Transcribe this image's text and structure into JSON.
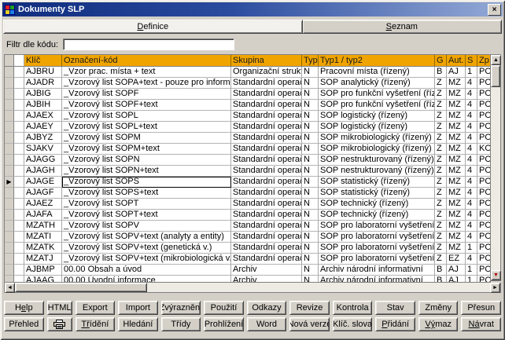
{
  "window": {
    "title": "Dokumenty SLP"
  },
  "icons": {
    "close": "×",
    "scroll_up": "▲",
    "scroll_down": "▼",
    "scroll_left": "◄",
    "scroll_right": "►",
    "row_pointer": "▶"
  },
  "colors": {
    "header_bg": "#F0A400",
    "titlebar_left": "#0F2C7E",
    "titlebar_right": "#93A9D6",
    "window_bg": "#D4D0C8",
    "scroll_down_arrow": "#B00000"
  },
  "tabs": [
    {
      "label": "Definice",
      "accel": "D",
      "active": true
    },
    {
      "label": "Seznam",
      "accel": "S",
      "active": false
    }
  ],
  "filter": {
    "label": "Filtr dle kódu:",
    "value": ""
  },
  "table": {
    "columns": [
      "Klíč",
      "Označení-kód",
      "Skupina",
      "Typ",
      "Typ1 / typ2",
      "G",
      "Aut.",
      "S",
      "Zp"
    ],
    "rows": [
      {
        "key": "AJBRU",
        "name": "_Vzor prac. místa + text",
        "group": "Organizační struktura",
        "typ": "N",
        "typ12": "Pracovní místa (řízený)",
        "g": "B",
        "aut": "AJ",
        "s": "1",
        "zp": "PO",
        "selected": false
      },
      {
        "key": "AJADR",
        "name": "_Vzorový list SOPA+text - pouze pro informaci",
        "group": "Standardní operační postupy",
        "typ": "N",
        "typ12": "SOP analytický (řízený)",
        "g": "Z",
        "aut": "MZ",
        "s": "4",
        "zp": "PO",
        "selected": false
      },
      {
        "key": "AJBIG",
        "name": "_Vzorový list SOPF",
        "group": "Standardní operační postupy",
        "typ": "N",
        "typ12": "SOP pro funkční vyšetření (řízený)",
        "g": "Z",
        "aut": "MZ",
        "s": "4",
        "zp": "PO",
        "selected": false
      },
      {
        "key": "AJBIH",
        "name": "_Vzorový list SOPF+text",
        "group": "Standardní operační postupy",
        "typ": "N",
        "typ12": "SOP pro funkční vyšetření (řízený)",
        "g": "Z",
        "aut": "MZ",
        "s": "4",
        "zp": "PO",
        "selected": false
      },
      {
        "key": "AJAEX",
        "name": "_Vzorový list SOPL",
        "group": "Standardní operační postupy",
        "typ": "N",
        "typ12": "SOP logistický (řízený)",
        "g": "Z",
        "aut": "MZ",
        "s": "4",
        "zp": "PO",
        "selected": false
      },
      {
        "key": "AJAEY",
        "name": "_Vzorový list SOPL+text",
        "group": "Standardní operační postupy",
        "typ": "N",
        "typ12": "SOP logistický (řízený)",
        "g": "Z",
        "aut": "MZ",
        "s": "4",
        "zp": "PO",
        "selected": false
      },
      {
        "key": "AJBYZ",
        "name": "_Vzorový list SOPM",
        "group": "Standardní operační postupy",
        "typ": "N",
        "typ12": "SOP mikrobiologický (řízený)",
        "g": "Z",
        "aut": "MZ",
        "s": "4",
        "zp": "PO",
        "selected": false
      },
      {
        "key": "SJAKV",
        "name": "_Vzorový list SOPM+text",
        "group": "Standardní operační postupy",
        "typ": "N",
        "typ12": "SOP mikrobiologický (řízený)",
        "g": "Z",
        "aut": "MZ",
        "s": "4",
        "zp": "KO",
        "selected": false
      },
      {
        "key": "AJAGG",
        "name": "_Vzorový list SOPN",
        "group": "Standardní operační postupy",
        "typ": "N",
        "typ12": "SOP nestrukturovaný (řízený)",
        "g": "Z",
        "aut": "MZ",
        "s": "4",
        "zp": "PO",
        "selected": false
      },
      {
        "key": "AJAGH",
        "name": "_Vzorový list SOPN+text",
        "group": "Standardní operační postupy",
        "typ": "N",
        "typ12": "SOP nestrukturovaný (řízený)",
        "g": "Z",
        "aut": "MZ",
        "s": "4",
        "zp": "PO",
        "selected": false
      },
      {
        "key": "AJAGE",
        "name": "_Vzorový list SOPS",
        "group": "Standardní operační postupy",
        "typ": "N",
        "typ12": "SOP statistický (řízený)",
        "g": "Z",
        "aut": "MZ",
        "s": "4",
        "zp": "PO",
        "selected": true
      },
      {
        "key": "AJAGF",
        "name": "_Vzorový list SOPS+text",
        "group": "Standardní operační postupy",
        "typ": "N",
        "typ12": "SOP statistický (řízený)",
        "g": "Z",
        "aut": "MZ",
        "s": "4",
        "zp": "PO",
        "selected": false
      },
      {
        "key": "AJAEZ",
        "name": "_Vzorový list SOPT",
        "group": "Standardní operační postupy",
        "typ": "N",
        "typ12": "SOP technický (řízený)",
        "g": "Z",
        "aut": "MZ",
        "s": "4",
        "zp": "PO",
        "selected": false
      },
      {
        "key": "AJAFA",
        "name": "_Vzorový list SOPT+text",
        "group": "Standardní operační postupy",
        "typ": "N",
        "typ12": "SOP technický (řízený)",
        "g": "Z",
        "aut": "MZ",
        "s": "4",
        "zp": "PO",
        "selected": false
      },
      {
        "key": "MZATH",
        "name": "_Vzorový list SOPV",
        "group": "Standardní operační postupy",
        "typ": "N",
        "typ12": "SOP pro laboratorní vyšetření (řízený)",
        "g": "Z",
        "aut": "MZ",
        "s": "4",
        "zp": "PO",
        "selected": false
      },
      {
        "key": "MZATI",
        "name": "_Vzorový list SOPV+text (analyty a entity)",
        "group": "Standardní operační postupy",
        "typ": "N",
        "typ12": "SOP pro laboratorní vyšetření (řízený)",
        "g": "Z",
        "aut": "MZ",
        "s": "4",
        "zp": "PO",
        "selected": false
      },
      {
        "key": "MZATK",
        "name": "_Vzorový list SOPV+text (genetická v.)",
        "group": "Standardní operační postupy",
        "typ": "N",
        "typ12": "SOP pro laboratorní vyšetření (řízený)",
        "g": "Z",
        "aut": "MZ",
        "s": "1",
        "zp": "PO",
        "selected": false
      },
      {
        "key": "MZATJ",
        "name": "_Vzorový list SOPV+text (mikrobiologická v.)",
        "group": "Standardní operační postupy",
        "typ": "N",
        "typ12": "SOP pro laboratorní vyšetření (řízený)",
        "g": "Z",
        "aut": "EZ",
        "s": "4",
        "zp": "PO",
        "selected": false
      },
      {
        "key": "AJBMP",
        "name": "00.00 Obsah a úvod",
        "group": "Archiv",
        "typ": "N",
        "typ12": "Archiv národní informativní",
        "g": "B",
        "aut": "AJ",
        "s": "1",
        "zp": "PO",
        "selected": false
      },
      {
        "key": "AJAAG",
        "name": "00.00 Úvodní informace",
        "group": "Archiv",
        "typ": "N",
        "typ12": "Archiv národní informativní",
        "g": "B",
        "aut": "AJ",
        "s": "1",
        "zp": "PO",
        "selected": false
      }
    ]
  },
  "buttons": {
    "row1": [
      {
        "name": "help-button",
        "label": "Help",
        "accel": "e"
      },
      {
        "name": "html-button",
        "label": "HTML",
        "accel": "",
        "narrow": true
      },
      {
        "name": "export-button",
        "label": "Export",
        "accel": ""
      },
      {
        "name": "import-button",
        "label": "Import",
        "accel": ""
      },
      {
        "name": "highlight-button",
        "label": "Zvýraznění",
        "accel": ""
      },
      {
        "name": "usage-button",
        "label": "Použití",
        "accel": ""
      },
      {
        "name": "links-button",
        "label": "Odkazy",
        "accel": ""
      },
      {
        "name": "revision-button",
        "label": "Revize",
        "accel": ""
      },
      {
        "name": "check-button",
        "label": "Kontrola",
        "accel": ""
      },
      {
        "name": "state-button",
        "label": "Stav",
        "accel": ""
      },
      {
        "name": "changes-button",
        "label": "Změny",
        "accel": ""
      },
      {
        "name": "move-button",
        "label": "Přesun",
        "accel": ""
      }
    ],
    "row2": [
      {
        "name": "overview-button",
        "label": "Přehled",
        "accel": ""
      },
      {
        "name": "print-button",
        "label": "",
        "accel": "",
        "narrow": true,
        "icon": "printer"
      },
      {
        "name": "sort-button",
        "label": "Třídění",
        "accel": "Tř"
      },
      {
        "name": "search-button",
        "label": "Hledání",
        "accel": ""
      },
      {
        "name": "classes-button",
        "label": "Třídy",
        "accel": ""
      },
      {
        "name": "view-button",
        "label": "Prohlížení",
        "accel": ""
      },
      {
        "name": "word-button",
        "label": "Word",
        "accel": ""
      },
      {
        "name": "new-version-button",
        "label": "Nová verze",
        "accel": ""
      },
      {
        "name": "keywords-button",
        "label": "Klíč. slova",
        "accel": ""
      },
      {
        "name": "add-button",
        "label": "Přidání",
        "accel": "P"
      },
      {
        "name": "delete-button",
        "label": "Výmaz",
        "accel": "Vý"
      },
      {
        "name": "return-button",
        "label": "Návrat",
        "accel": "Ná"
      }
    ]
  }
}
